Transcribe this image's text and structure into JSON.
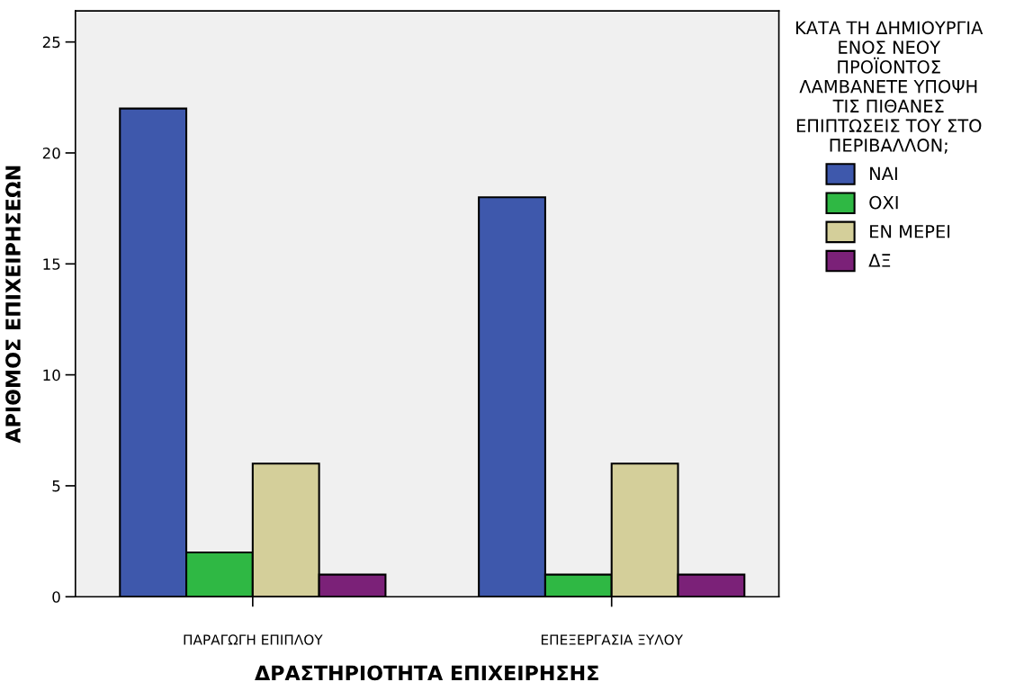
{
  "chart_data": {
    "type": "bar",
    "xlabel": "ΔΡΑΣΤΗΡΙΟΤΗΤΑ ΕΠΙΧΕΙΡΗΣΗΣ",
    "ylabel": "ΑΡΙΘΜΟΣ ΕΠΙΧΕΙΡΗΣΕΩΝ",
    "legend_title": "ΚΑΤΑ ΤΗ ΔΗΜΙΟΥΡΓΙΑ\nΕΝΟΣ ΝΕΟΥ\nΠΡΟΪΟΝΤΟΣ\nΛΑΜΒΑΝΕΤΕ ΥΠΟΨΗ\nΤΙΣ ΠΙΘΑΝΕΣ\nΕΠΙΠΤΩΣΕΙΣ ΤΟΥ ΣΤΟ\nΠΕΡΙΒΑΛΛΟΝ;",
    "categories": [
      "ΠΑΡΑΓΩΓΗ ΕΠΙΠΛΟΥ",
      "ΕΠΕΞΕΡΓΑΣΙΑ ΞΥΛΟΥ"
    ],
    "series": [
      {
        "name": "ΝΑΙ",
        "color": "#3e58ac",
        "values": [
          22,
          18
        ]
      },
      {
        "name": "ΟΧΙ",
        "color": "#2fb844",
        "values": [
          2,
          1
        ]
      },
      {
        "name": "ΕΝ ΜΕΡΕΙ",
        "color": "#d4cf9a",
        "values": [
          6,
          6
        ]
      },
      {
        "name": "ΔΞ",
        "color": "#7b2178",
        "values": [
          1,
          1
        ]
      }
    ],
    "ylim": [
      0,
      26.4
    ],
    "yticks": [
      0,
      5,
      10,
      15,
      20,
      25
    ],
    "grid": false,
    "legend": "right"
  }
}
